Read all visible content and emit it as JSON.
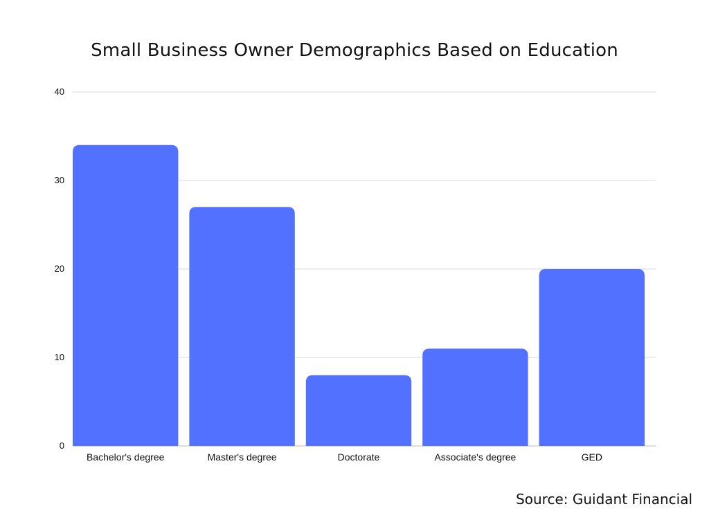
{
  "source": "Source: Guidant Financial",
  "colors": {
    "bar": "#5271ff",
    "grid": "#d9d9d9",
    "text": "#111111"
  },
  "chart_data": {
    "type": "bar",
    "title": "Small Business Owner Demographics Based on Education",
    "xlabel": "",
    "ylabel": "",
    "categories": [
      "Bachelor's degree",
      "Master's degree",
      "Doctorate",
      "Associate's degree",
      "GED"
    ],
    "values": [
      34,
      27,
      8,
      11,
      20
    ],
    "ylim": [
      0,
      40
    ],
    "yticks": [
      0,
      10,
      20,
      30,
      40
    ],
    "grid": true,
    "legend": "none"
  }
}
